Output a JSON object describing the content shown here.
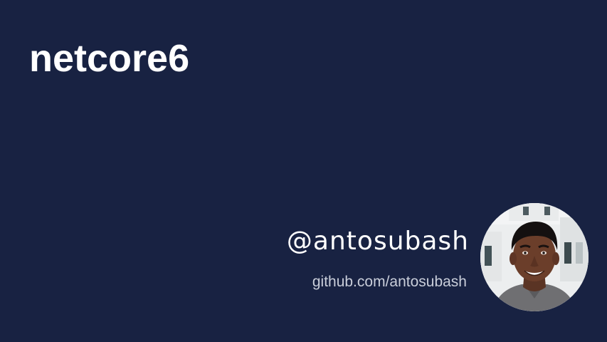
{
  "card": {
    "title": "netcore6",
    "handle": "@antosubash",
    "github": "github.com/antosubash"
  },
  "colors": {
    "background": "#182242",
    "title": "#ffffff",
    "handle": "#ffffff",
    "github": "#c9ceda"
  },
  "icons": {
    "avatar": "person-photo"
  }
}
